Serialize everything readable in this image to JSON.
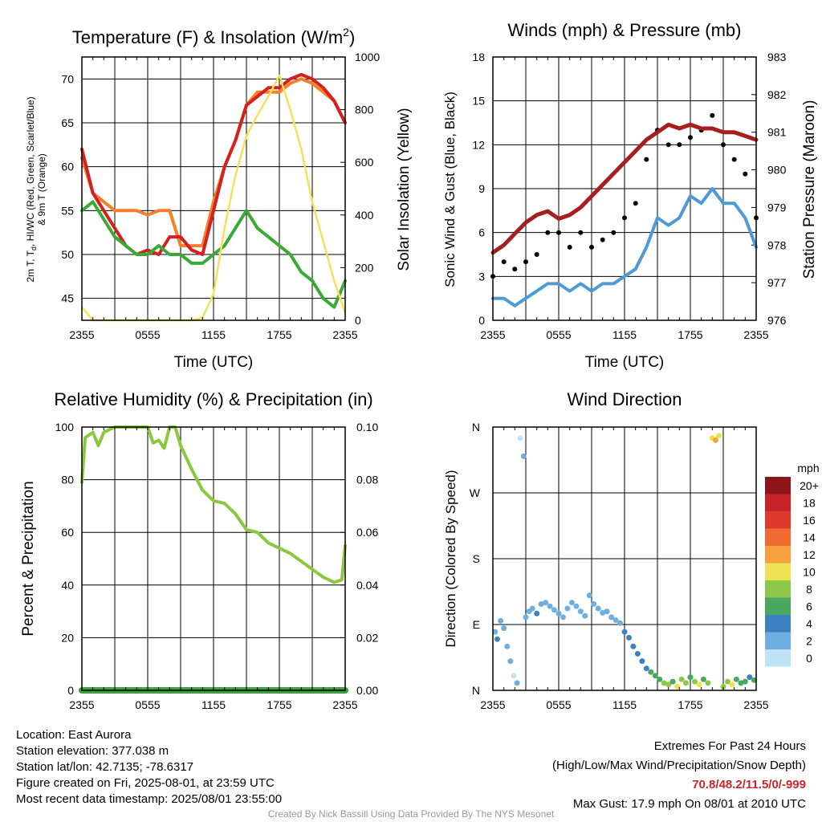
{
  "colors": {
    "temp_2m": "#d42020",
    "dewpoint": "#3aaa35",
    "heat_index": "#3570c0",
    "temp_9m": "#f57f2a",
    "insolation": "#f6e05a",
    "wind": "#4d9ad6",
    "gust": "#000000",
    "pressure": "#a81d1d",
    "rh": "#8dc63f",
    "precip": "#3aa040"
  },
  "time_ticks": [
    "2355",
    "0555",
    "1155",
    "1755",
    "2355"
  ],
  "chart_data": [
    {
      "type": "line",
      "title": "Temperature (F) & Insolation (W/m²)",
      "xlabel": "Time (UTC)",
      "ylabel": "2m T, Td, HI/WC (Red, Green, Scarlet/Blue) & 9m T (Orange)",
      "ylabel_line1": "2m T, Td, HI/WC (Red, Green, Scarlet/Blue)",
      "ylabel_line2": "& 9m T (Orange)",
      "y2label": "Solar Insolation (Yellow)",
      "ylim": [
        42.5,
        72.5
      ],
      "yticks": [
        45,
        50,
        55,
        60,
        65,
        70
      ],
      "y2lim": [
        0,
        1000
      ],
      "y2ticks": [
        0,
        200,
        400,
        600,
        800,
        1000
      ],
      "x_hours": [
        0,
        1,
        2,
        3,
        4,
        5,
        6,
        7,
        8,
        9,
        10,
        11,
        12,
        13,
        14,
        15,
        16,
        17,
        18,
        19,
        20,
        21,
        22,
        23,
        24
      ],
      "series": [
        {
          "key": "temp_9m",
          "values": [
            61,
            57,
            56,
            55,
            55,
            55,
            54.5,
            55,
            55,
            51,
            51,
            51,
            56,
            60,
            63,
            67,
            68.5,
            68.5,
            68.5,
            69.5,
            70,
            69.5,
            68.5,
            67.5,
            65
          ]
        },
        {
          "key": "temp_2m",
          "values": [
            62,
            57,
            55,
            53,
            51,
            50,
            50.5,
            50,
            52,
            52,
            50.5,
            50,
            55,
            60,
            63,
            67,
            68,
            69,
            69,
            70,
            70.5,
            70,
            69,
            67.5,
            65
          ]
        },
        {
          "key": "dewpoint",
          "values": [
            55,
            56,
            54,
            52,
            51,
            50,
            50,
            51,
            50,
            50,
            49,
            49,
            50,
            51,
            53,
            55,
            53,
            52,
            51,
            50,
            48,
            47,
            45,
            44,
            47
          ]
        },
        {
          "key": "insolation",
          "y_axis": "right",
          "values": [
            50,
            0,
            0,
            0,
            0,
            0,
            0,
            0,
            0,
            0,
            0,
            10,
            100,
            350,
            550,
            700,
            780,
            850,
            930,
            800,
            650,
            450,
            300,
            150,
            30
          ]
        }
      ]
    },
    {
      "type": "line",
      "title": "Winds (mph) & Pressure (mb)",
      "xlabel": "Time (UTC)",
      "ylabel": "Sonic Wind & Gust (Blue, Black)",
      "y2label": "Station Pressure (Maroon)",
      "ylim": [
        0,
        18
      ],
      "yticks": [
        0,
        3,
        6,
        9,
        12,
        15,
        18
      ],
      "y2lim": [
        976,
        983
      ],
      "y2ticks": [
        976,
        977,
        978,
        979,
        980,
        981,
        982,
        983
      ],
      "x_hours": [
        0,
        1,
        2,
        3,
        4,
        5,
        6,
        7,
        8,
        9,
        10,
        11,
        12,
        13,
        14,
        15,
        16,
        17,
        18,
        19,
        20,
        21,
        22,
        23,
        24
      ],
      "series": [
        {
          "key": "wind",
          "values": [
            1.5,
            1.5,
            1,
            1.5,
            2,
            2.5,
            2.5,
            2,
            2.5,
            2,
            2.5,
            2.5,
            3,
            3.5,
            5,
            7,
            6.5,
            7,
            8.5,
            8,
            9,
            8,
            8,
            7,
            5
          ]
        },
        {
          "key": "gust",
          "values": [
            3,
            4,
            3.5,
            4,
            4.5,
            6,
            6,
            5,
            6,
            5,
            5.5,
            6,
            7,
            8,
            11,
            13,
            12,
            12,
            12.5,
            13,
            14,
            12,
            11,
            10,
            7
          ]
        },
        {
          "key": "pressure",
          "y_axis": "right",
          "values": [
            977.8,
            978.0,
            978.3,
            978.6,
            978.8,
            978.9,
            978.7,
            978.8,
            979.0,
            979.3,
            979.6,
            979.9,
            980.2,
            980.5,
            980.8,
            981.0,
            981.2,
            981.1,
            981.2,
            981.1,
            981.1,
            981.0,
            981.0,
            980.9,
            980.8
          ]
        }
      ]
    },
    {
      "type": "line",
      "title": "Relative Humidity (%) & Precipitation (in)",
      "xlabel": "",
      "ylabel": "Percent & Precipitation",
      "ylim": [
        0,
        100
      ],
      "yticks": [
        0,
        20,
        40,
        60,
        80,
        100
      ],
      "y2lim": [
        0,
        0.1
      ],
      "y2ticks": [
        "0.00",
        "0.02",
        "0.04",
        "0.06",
        "0.08",
        "0.10"
      ],
      "x_hours": [
        0,
        0.3,
        1,
        1.5,
        2,
        3,
        4,
        5,
        6,
        6.5,
        7,
        7.5,
        8,
        8.5,
        9,
        10,
        11,
        12,
        13,
        14,
        15,
        16,
        17,
        18,
        19,
        20,
        21,
        22,
        23,
        23.7,
        24
      ],
      "series": [
        {
          "key": "rh",
          "values": [
            79,
            96,
            98,
            93,
            98,
            100,
            100,
            100,
            100,
            94,
            95,
            92,
            100,
            100,
            93,
            84,
            76,
            72,
            71,
            67,
            61,
            60,
            56,
            54,
            52,
            49,
            46,
            43,
            41,
            42,
            55
          ]
        },
        {
          "key": "precip",
          "y_axis": "right",
          "values": [
            0,
            0,
            0,
            0,
            0,
            0,
            0,
            0,
            0,
            0,
            0,
            0,
            0,
            0,
            0,
            0,
            0,
            0,
            0,
            0,
            0,
            0,
            0,
            0,
            0,
            0,
            0,
            0,
            0,
            0,
            0
          ]
        }
      ]
    },
    {
      "type": "scatter",
      "title": "Wind Direction",
      "xlabel": "",
      "ylabel": "Direction (Colored By Speed)",
      "yticks": [
        "N",
        "E",
        "S",
        "W",
        "N"
      ],
      "ylim": [
        0,
        360
      ],
      "colorbar": {
        "unit": "mph",
        "labels": [
          "20+",
          "18",
          "16",
          "14",
          "12",
          "10",
          "8",
          "6",
          "4",
          "2",
          "0"
        ],
        "colors": [
          "#8e1518",
          "#c9232a",
          "#e03a2c",
          "#f06a32",
          "#f6a040",
          "#ece053",
          "#8ec84a",
          "#48a860",
          "#3d82c0",
          "#6faee0",
          "#bfe3f6"
        ]
      },
      "points": [
        [
          0.2,
          80,
          2
        ],
        [
          0.4,
          70,
          3
        ],
        [
          0.7,
          95,
          1
        ],
        [
          1.0,
          85,
          2
        ],
        [
          1.3,
          60,
          1
        ],
        [
          1.6,
          40,
          1
        ],
        [
          1.9,
          20,
          0
        ],
        [
          2.2,
          10,
          1
        ],
        [
          2.5,
          345,
          0
        ],
        [
          2.8,
          320,
          1
        ],
        [
          3.0,
          100,
          1
        ],
        [
          3.3,
          108,
          2
        ],
        [
          3.6,
          112,
          2
        ],
        [
          4.0,
          105,
          3
        ],
        [
          4.4,
          118,
          2
        ],
        [
          4.8,
          120,
          1
        ],
        [
          5.2,
          115,
          2
        ],
        [
          5.6,
          110,
          2
        ],
        [
          6.0,
          105,
          2
        ],
        [
          6.4,
          100,
          2
        ],
        [
          6.8,
          112,
          2
        ],
        [
          7.2,
          120,
          2
        ],
        [
          7.6,
          115,
          2
        ],
        [
          8.0,
          108,
          2
        ],
        [
          8.4,
          102,
          2
        ],
        [
          8.8,
          130,
          1
        ],
        [
          9.2,
          118,
          2
        ],
        [
          9.6,
          112,
          2
        ],
        [
          10.0,
          106,
          2
        ],
        [
          10.4,
          108,
          2
        ],
        [
          10.8,
          100,
          2
        ],
        [
          11.2,
          96,
          2
        ],
        [
          11.6,
          92,
          2
        ],
        [
          12.0,
          80,
          3
        ],
        [
          12.4,
          72,
          4
        ],
        [
          12.8,
          60,
          3
        ],
        [
          13.2,
          50,
          4
        ],
        [
          13.6,
          40,
          3
        ],
        [
          14.0,
          30,
          4
        ],
        [
          14.4,
          25,
          5
        ],
        [
          14.8,
          20,
          6
        ],
        [
          15.2,
          15,
          5
        ],
        [
          15.6,
          10,
          7
        ],
        [
          16.0,
          8,
          8
        ],
        [
          16.4,
          12,
          6
        ],
        [
          16.8,
          5,
          9
        ],
        [
          17.2,
          15,
          7
        ],
        [
          17.6,
          10,
          8
        ],
        [
          18.0,
          18,
          6
        ],
        [
          18.4,
          12,
          7
        ],
        [
          18.8,
          8,
          9
        ],
        [
          19.2,
          15,
          6
        ],
        [
          19.6,
          10,
          7
        ],
        [
          20.0,
          345,
          10
        ],
        [
          20.3,
          342,
          12
        ],
        [
          20.6,
          348,
          9
        ],
        [
          21.0,
          5,
          8
        ],
        [
          21.4,
          12,
          7
        ],
        [
          21.8,
          8,
          9
        ],
        [
          22.2,
          15,
          6
        ],
        [
          22.6,
          10,
          5
        ],
        [
          23.0,
          12,
          6
        ],
        [
          23.4,
          18,
          4
        ],
        [
          23.8,
          14,
          5
        ]
      ]
    }
  ],
  "footer": {
    "location": "Location: East Aurora",
    "elevation": "Station elevation: 377.038 m",
    "latlon": "Station lat/lon: 42.7135; -78.6317",
    "created": "Figure created on Fri, 2025-08-01, at 23:59 UTC",
    "recent": "Most recent data timestamp: 2025/08/01 23:55:00",
    "extremes_title": "Extremes For Past 24 Hours",
    "extremes_desc": "(High/Low/Max Wind/Precipitation/Snow Depth)",
    "extremes_values": "70.8/48.2/11.5/0/-999",
    "max_gust": "Max Gust: 17.9 mph On 08/01 at 2010 UTC",
    "credit": "Created By Nick Bassill Using Data Provided By The NYS Mesonet"
  }
}
